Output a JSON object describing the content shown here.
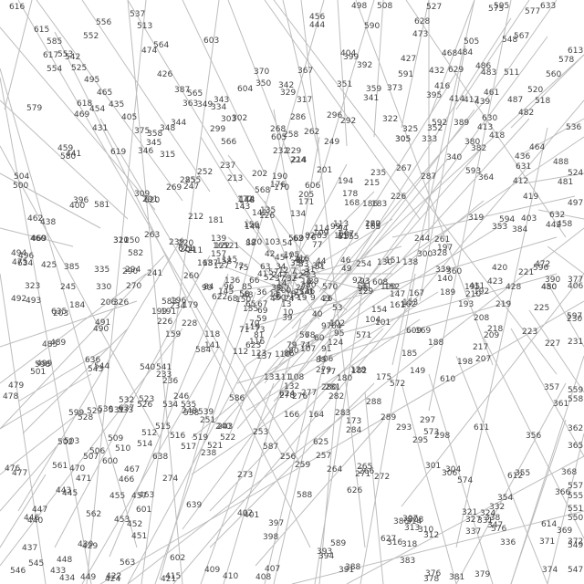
{
  "diagram": {
    "type": "graph-layout",
    "colors": {
      "background": "#ffffff",
      "edge": "#bdbdbd",
      "label": "#444444"
    },
    "labels": [
      "498",
      "508",
      "527",
      "595",
      "575",
      "633",
      "537",
      "513",
      "556",
      "552",
      "615",
      "585",
      "553",
      "542",
      "525",
      "554",
      "495",
      "465",
      "474",
      "426",
      "387",
      "363",
      "349",
      "343",
      "334",
      "303",
      "302",
      "370",
      "350",
      "342",
      "329",
      "367",
      "317",
      "456",
      "444",
      "404",
      "399",
      "392",
      "351",
      "359",
      "341",
      "373",
      "427",
      "473",
      "468",
      "484",
      "505",
      "486",
      "548",
      "567",
      "483",
      "511",
      "520",
      "560",
      "613",
      "432",
      "416",
      "395",
      "414",
      "417",
      "439",
      "461",
      "487",
      "518",
      "482",
      "536",
      "405",
      "435",
      "454",
      "469",
      "431",
      "375",
      "358",
      "345",
      "348",
      "344",
      "380",
      "389",
      "413",
      "418",
      "382",
      "340",
      "436",
      "464",
      "488",
      "459",
      "441",
      "315",
      "346",
      "285",
      "252",
      "255",
      "247",
      "237",
      "213",
      "202",
      "190",
      "176",
      "170",
      "299",
      "268",
      "258",
      "286",
      "262",
      "296",
      "292",
      "322",
      "325",
      "352",
      "305",
      "333",
      "305",
      "364",
      "412",
      "419",
      "481",
      "524",
      "504",
      "500",
      "396",
      "400",
      "309",
      "291",
      "269",
      "263",
      "212",
      "181",
      "201",
      "194",
      "232",
      "229",
      "224",
      "214",
      "249",
      "178",
      "168",
      "186",
      "183",
      "235",
      "215",
      "267",
      "226",
      "287",
      "319",
      "353",
      "384",
      "403",
      "442",
      "458",
      "497",
      "462",
      "438",
      "469",
      "460",
      "475",
      "425",
      "385",
      "335",
      "330",
      "326",
      "320",
      "311",
      "290",
      "294",
      "270",
      "250",
      "239",
      "220",
      "204",
      "211",
      "187",
      "163",
      "157",
      "205",
      "171",
      "156",
      "144",
      "142",
      "135",
      "126",
      "134",
      "121",
      "165",
      "148",
      "143",
      "172",
      "174",
      "200",
      "160",
      "163",
      "113",
      "125",
      "117",
      "114",
      "109",
      "94",
      "99",
      "83",
      "82",
      "77",
      "76",
      "62",
      "54",
      "87",
      "105",
      "103",
      "120",
      "88",
      "55",
      "61",
      "222",
      "254",
      "216",
      "242",
      "244",
      "261",
      "300",
      "328",
      "339",
      "360",
      "411",
      "423",
      "420",
      "428",
      "472",
      "480",
      "450",
      "390",
      "377",
      "406",
      "323",
      "245",
      "184",
      "203",
      "206",
      "241",
      "260",
      "234",
      "196",
      "199",
      "191",
      "226",
      "228",
      "167",
      "179",
      "159",
      "118",
      "141",
      "139",
      "115",
      "122",
      "127",
      "136",
      "145",
      "150",
      "155",
      "158",
      "90",
      "96",
      "84",
      "85",
      "66",
      "72",
      "75",
      "63",
      "57",
      "52",
      "58",
      "48",
      "47",
      "42",
      "45",
      "41",
      "36",
      "37",
      "34",
      "35",
      "32",
      "33",
      "30",
      "31",
      "29",
      "28",
      "27",
      "25",
      "24",
      "23",
      "22",
      "21",
      "20",
      "19",
      "18",
      "16",
      "17",
      "15",
      "14",
      "13",
      "12",
      "11",
      "10",
      "9",
      "8",
      "7",
      "6",
      "5",
      "4",
      "3",
      "2",
      "1",
      "0",
      "51",
      "26",
      "38",
      "39",
      "40",
      "43",
      "44",
      "46",
      "49",
      "50",
      "53",
      "56",
      "59",
      "60",
      "64",
      "65",
      "67",
      "68",
      "69",
      "70",
      "71",
      "73",
      "74",
      "78",
      "79",
      "80",
      "81",
      "86",
      "89",
      "91",
      "92",
      "93",
      "95",
      "97",
      "98",
      "100",
      "101",
      "102",
      "104",
      "106",
      "107",
      "108",
      "110",
      "111",
      "112",
      "116",
      "119",
      "123",
      "124",
      "128",
      "129",
      "130",
      "131",
      "132",
      "133",
      "137",
      "138",
      "140",
      "146",
      "147",
      "149",
      "151",
      "152",
      "153",
      "154",
      "161",
      "162",
      "164",
      "166",
      "169",
      "173",
      "175",
      "177",
      "180",
      "182",
      "185",
      "188",
      "189",
      "192",
      "193",
      "195",
      "197",
      "198",
      "207",
      "208",
      "209",
      "210",
      "217",
      "218",
      "219",
      "221",
      "223",
      "225",
      "227",
      "230",
      "231",
      "233",
      "236",
      "238",
      "240",
      "243",
      "246",
      "248",
      "251",
      "253",
      "256",
      "257",
      "259",
      "264",
      "265",
      "266",
      "271",
      "272",
      "273",
      "274",
      "276",
      "277",
      "278",
      "279",
      "280",
      "281",
      "282",
      "283",
      "284",
      "288",
      "289",
      "293",
      "295",
      "297",
      "298",
      "301",
      "304",
      "306",
      "307",
      "308",
      "310",
      "312",
      "313",
      "314",
      "316",
      "318",
      "321",
      "324",
      "327",
      "331",
      "332",
      "336",
      "337",
      "338",
      "347",
      "354",
      "355",
      "356",
      "357",
      "361",
      "362",
      "365",
      "366",
      "368",
      "369",
      "371",
      "372",
      "374",
      "376",
      "378",
      "379",
      "381",
      "383",
      "386",
      "388",
      "391",
      "393",
      "394",
      "397",
      "398",
      "401",
      "402",
      "407",
      "408",
      "409",
      "410",
      "415",
      "421",
      "422",
      "424",
      "429",
      "430",
      "433",
      "434",
      "437",
      "440",
      "443",
      "445",
      "446",
      "447",
      "448",
      "449",
      "451",
      "452",
      "453",
      "455",
      "457",
      "463",
      "466",
      "467",
      "470",
      "471",
      "476",
      "477",
      "478",
      "479",
      "485",
      "489",
      "490",
      "491",
      "492",
      "493",
      "494",
      "496",
      "499",
      "501",
      "502",
      "503",
      "506",
      "507",
      "509",
      "510",
      "512",
      "514",
      "515",
      "516",
      "517",
      "519",
      "521",
      "522",
      "523",
      "526",
      "528",
      "529",
      "530",
      "531",
      "532",
      "533",
      "534",
      "535",
      "538",
      "539",
      "540",
      "541",
      "543",
      "544",
      "545",
      "546",
      "547",
      "549",
      "550",
      "551",
      "555",
      "557",
      "558",
      "559",
      "561",
      "562",
      "563",
      "564",
      "565",
      "566",
      "568",
      "569",
      "570",
      "571",
      "572",
      "573",
      "574",
      "576",
      "577",
      "578",
      "579",
      "580",
      "581",
      "582",
      "583",
      "584",
      "586",
      "587",
      "588",
      "589",
      "590",
      "591",
      "592",
      "593",
      "594",
      "596",
      "597",
      "598",
      "599",
      "600",
      "601",
      "602",
      "603",
      "604",
      "605",
      "606",
      "607",
      "608",
      "609",
      "610",
      "611",
      "612",
      "614",
      "616",
      "617",
      "618",
      "619",
      "620",
      "621",
      "622",
      "623",
      "624",
      "625",
      "626",
      "627",
      "628",
      "629",
      "630",
      "631",
      "632",
      "634",
      "635",
      "636",
      "637",
      "638",
      "639"
    ]
  }
}
